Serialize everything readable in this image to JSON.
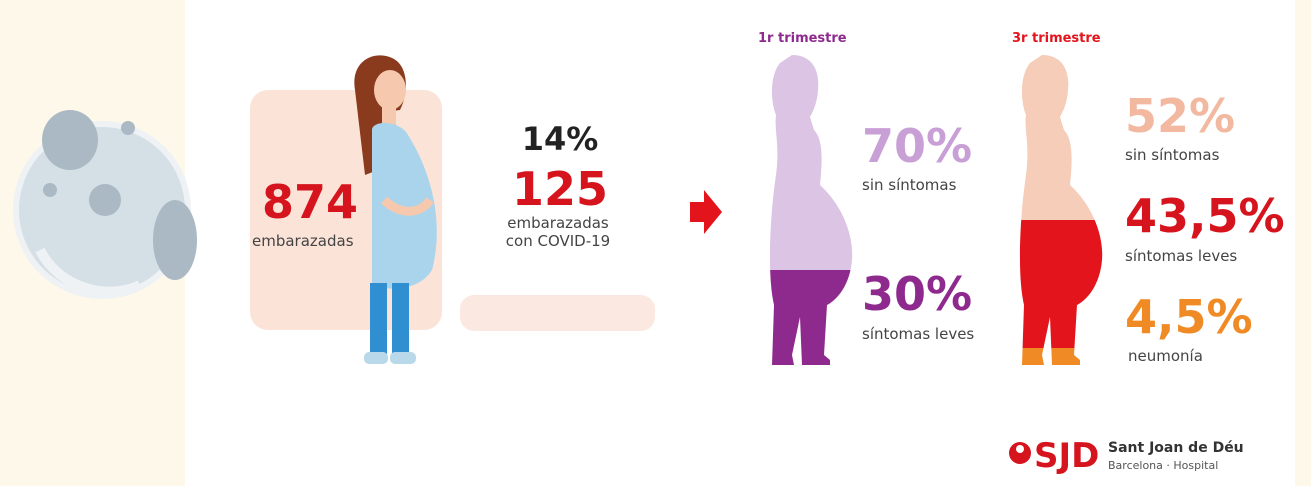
{
  "left": {
    "total": "874",
    "total_label": "embarazadas",
    "share": "14%",
    "covid": "125",
    "covid_label": [
      "embarazadas",
      "con COVID-19"
    ]
  },
  "trimesters": [
    {
      "title": "1r trimestre",
      "stats": [
        {
          "value": "70%",
          "label": "sin síntomas"
        },
        {
          "value": "30%",
          "label": "síntomas leves"
        }
      ]
    },
    {
      "title": "3r trimestre",
      "stats": [
        {
          "value": "52%",
          "label": "sin síntomas"
        },
        {
          "value": "43,5%",
          "label": "síntomas leves"
        },
        {
          "value": "4,5%",
          "label": "neumonía"
        }
      ]
    }
  ],
  "logo": {
    "mark": "SJD",
    "name": "Sant Joan de Déu",
    "subtitle": "Barcelona · Hospital"
  }
}
